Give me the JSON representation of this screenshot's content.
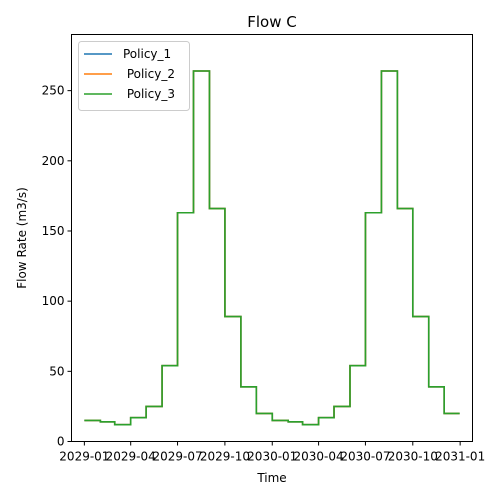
{
  "chart_data": {
    "type": "line",
    "title": "Flow C",
    "xlabel": "Time",
    "ylabel": "Flow Rate (m3/s)",
    "step": "post",
    "x": [
      "2029-01-01",
      "2029-02-01",
      "2029-03-01",
      "2029-04-01",
      "2029-05-01",
      "2029-06-01",
      "2029-07-01",
      "2029-08-01",
      "2029-09-01",
      "2029-10-01",
      "2029-11-01",
      "2029-12-01",
      "2030-01-01",
      "2030-02-01",
      "2030-03-01",
      "2030-04-01",
      "2030-05-01",
      "2030-06-01",
      "2030-07-01",
      "2030-08-01",
      "2030-09-01",
      "2030-10-01",
      "2030-11-01",
      "2030-12-01",
      "2030-12-31"
    ],
    "xlim": [
      "2028-12-07",
      "2031-01-25"
    ],
    "ylim": [
      0,
      290
    ],
    "yticks": [
      0,
      50,
      100,
      150,
      200,
      250
    ],
    "xticks": [
      "2029-01-01",
      "2029-04-01",
      "2029-07-01",
      "2029-10-01",
      "2030-01-01",
      "2030-04-01",
      "2030-07-01",
      "2030-10-01",
      "2031-01-01"
    ],
    "xtick_labels": [
      "2029-01",
      "2029-04",
      "2029-07",
      "2029-10",
      "2030-01",
      "2030-04",
      "2030-07",
      "2030-10",
      "2031-01"
    ],
    "series": [
      {
        "name": "Policy_1",
        "color": "#1f77b4",
        "values": [
          15,
          14,
          12,
          17,
          25,
          54,
          163,
          264,
          166,
          89,
          39,
          20,
          15,
          14,
          12,
          17,
          25,
          54,
          163,
          264,
          166,
          89,
          39,
          20,
          20
        ]
      },
      {
        "name": " Policy_2",
        "color": "#ff7f0e",
        "values": [
          15,
          14,
          12,
          17,
          25,
          54,
          163,
          264,
          166,
          89,
          39,
          20,
          15,
          14,
          12,
          17,
          25,
          54,
          163,
          264,
          166,
          89,
          39,
          20,
          20
        ]
      },
      {
        "name": " Policy_3",
        "color": "#2ca02c",
        "values": [
          15,
          14,
          12,
          17,
          25,
          54,
          163,
          264,
          166,
          89,
          39,
          20,
          15,
          14,
          12,
          17,
          25,
          54,
          163,
          264,
          166,
          89,
          39,
          20,
          20
        ]
      }
    ],
    "legend": "top-left",
    "grid": false
  }
}
